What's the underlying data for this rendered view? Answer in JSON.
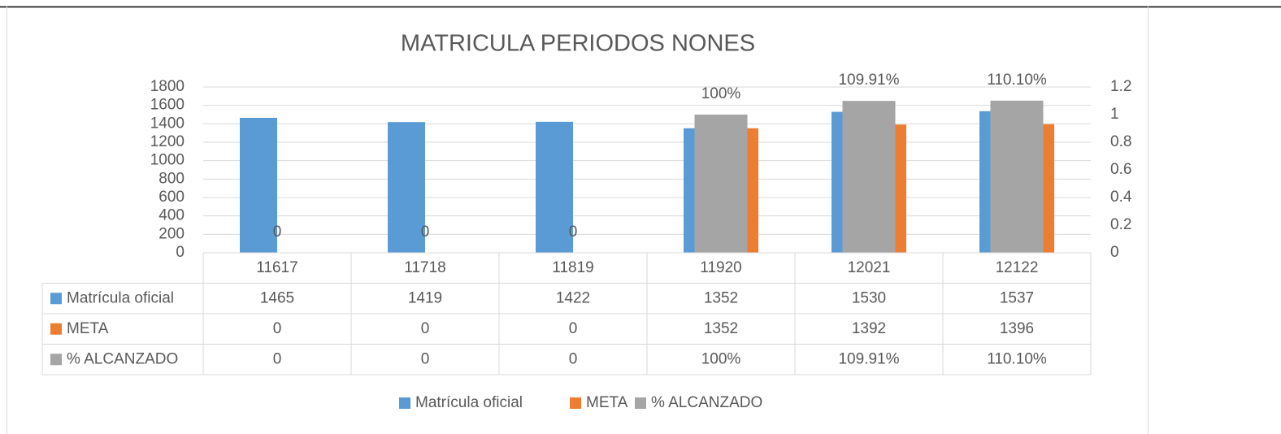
{
  "chart_data": {
    "type": "bar",
    "title": "MATRICULA PERIODOS NONES",
    "categories": [
      "11617",
      "11718",
      "11819",
      "11920",
      "12021",
      "12122"
    ],
    "series": [
      {
        "name": "Matrícula oficial",
        "color": "#5b9bd5",
        "values": [
          1465,
          1419,
          1422,
          1352,
          1530,
          1537
        ]
      },
      {
        "name": "META",
        "color": "#ed7d31",
        "values": [
          0,
          0,
          0,
          1352,
          1392,
          1396
        ]
      },
      {
        "name": "% ALCANZADO",
        "color": "#a5a5a5",
        "axis": "y2",
        "values": [
          0,
          0,
          0,
          1,
          1.0991,
          1.101
        ],
        "value_labels": [
          "0",
          "0",
          "0",
          "100%",
          "109.91%",
          "110.10%"
        ]
      }
    ],
    "ylim": [
      0,
      1800
    ],
    "yticks": [
      0,
      200,
      400,
      600,
      800,
      1000,
      1200,
      1400,
      1600,
      1800
    ],
    "y2lim": [
      0,
      1.2
    ],
    "y2ticks": [
      0,
      0.2,
      0.4,
      0.6,
      0.8,
      1,
      1.2
    ],
    "grid": true,
    "legend": "bottom",
    "data_table": true
  }
}
